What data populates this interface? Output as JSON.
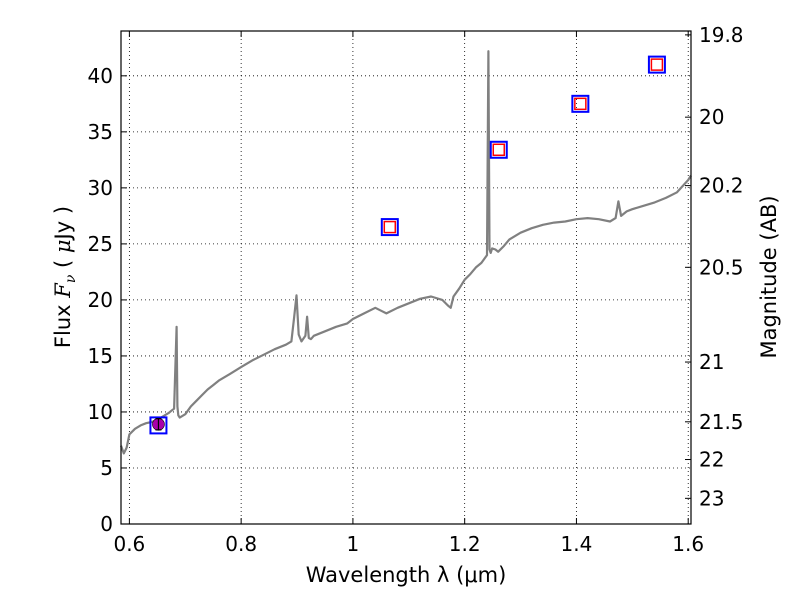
{
  "chart_data": {
    "type": "line",
    "xlabel": "Wavelength  λ (μm)",
    "ylabel": "Flux  F_ν  ( μJy )",
    "y2label": "Magnitude (AB)",
    "xlim": [
      0.585,
      1.605
    ],
    "ylim": [
      0,
      44
    ],
    "grid": true,
    "x_ticks": [
      0.6,
      0.8,
      1.0,
      1.2,
      1.4,
      1.6
    ],
    "x_tick_labels": [
      "0.6",
      "0.8",
      "1",
      "1.2",
      "1.4",
      "1.6"
    ],
    "y_ticks": [
      0,
      5,
      10,
      15,
      20,
      25,
      30,
      35,
      40
    ],
    "y_tick_labels": [
      "0",
      "5",
      "10",
      "15",
      "20",
      "25",
      "30",
      "35",
      "40"
    ],
    "y2_ticks": [
      19.8,
      20.0,
      20.2,
      20.5,
      21.0,
      21.5,
      22.0,
      23.0
    ],
    "y2_tick_labels": [
      "19.8",
      "20",
      "20.2",
      "20.5",
      "21",
      "21.5",
      "22",
      "23"
    ],
    "series": [
      {
        "type": "line",
        "color": "#808080",
        "x": [
          0.585,
          0.59,
          0.595,
          0.6,
          0.61,
          0.62,
          0.63,
          0.64,
          0.65,
          0.66,
          0.67,
          0.675,
          0.68,
          0.6845,
          0.686,
          0.6875,
          0.69,
          0.7,
          0.71,
          0.72,
          0.73,
          0.74,
          0.75,
          0.76,
          0.78,
          0.8,
          0.82,
          0.84,
          0.86,
          0.88,
          0.89,
          0.895,
          0.899,
          0.903,
          0.908,
          0.915,
          0.918,
          0.921,
          0.925,
          0.93,
          0.95,
          0.97,
          0.99,
          1.0,
          1.02,
          1.04,
          1.06,
          1.08,
          1.1,
          1.12,
          1.14,
          1.16,
          1.17,
          1.175,
          1.18,
          1.19,
          1.2,
          1.21,
          1.22,
          1.23,
          1.24,
          1.2425,
          1.2445,
          1.2465,
          1.249,
          1.255,
          1.26,
          1.27,
          1.28,
          1.3,
          1.32,
          1.34,
          1.36,
          1.38,
          1.4,
          1.42,
          1.44,
          1.46,
          1.47,
          1.475,
          1.48,
          1.49,
          1.5,
          1.52,
          1.54,
          1.56,
          1.58,
          1.6,
          1.605
        ],
        "y": [
          7.0,
          6.3,
          6.8,
          8.0,
          8.5,
          8.8,
          9.0,
          9.1,
          9.3,
          9.6,
          9.9,
          10.1,
          10.3,
          17.6,
          10.5,
          9.7,
          9.5,
          9.8,
          10.5,
          11.0,
          11.5,
          12.0,
          12.4,
          12.8,
          13.4,
          14.0,
          14.6,
          15.1,
          15.6,
          16.0,
          16.3,
          18.5,
          20.4,
          16.9,
          16.3,
          16.8,
          18.5,
          16.6,
          16.5,
          16.8,
          17.2,
          17.6,
          17.9,
          18.3,
          18.8,
          19.3,
          18.8,
          19.3,
          19.7,
          20.1,
          20.3,
          20.0,
          19.5,
          19.3,
          20.3,
          21.0,
          21.8,
          22.3,
          22.9,
          23.3,
          24.0,
          42.2,
          24.5,
          24.2,
          24.6,
          24.5,
          24.3,
          24.8,
          25.4,
          26.0,
          26.4,
          26.7,
          26.9,
          27.0,
          27.2,
          27.3,
          27.2,
          27.0,
          27.3,
          28.8,
          27.5,
          27.9,
          28.1,
          28.4,
          28.7,
          29.1,
          29.6,
          30.7,
          31.1
        ]
      },
      {
        "type": "scatter",
        "name": "",
        "marker": "square",
        "color": "#0000ff",
        "x": [
          0.652,
          1.066,
          1.261,
          1.407,
          1.544
        ],
        "y": [
          8.8,
          26.5,
          33.4,
          37.5,
          41.0
        ]
      },
      {
        "type": "scatter",
        "name": "",
        "marker": "square",
        "color": "#ff0000",
        "x": [
          1.066,
          1.261,
          1.407,
          1.544
        ],
        "y": [
          26.5,
          33.4,
          37.5,
          41.0
        ]
      },
      {
        "type": "scatter",
        "name": "",
        "marker": "circle-with-errorbar",
        "color": "#aa00aa",
        "x": [
          0.652
        ],
        "y": [
          8.9
        ],
        "yerr": [
          0.5
        ]
      }
    ]
  }
}
